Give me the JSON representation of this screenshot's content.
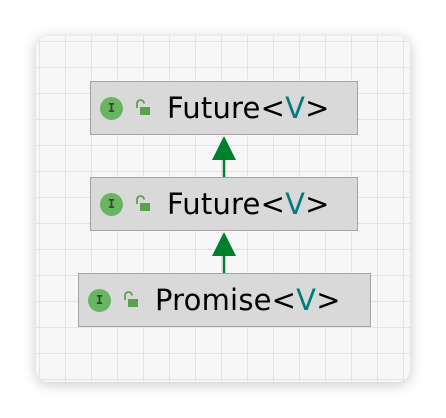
{
  "diagram": {
    "nodes": [
      {
        "id": "future-1",
        "kind_glyph": "I",
        "visibility": "public",
        "name": "Future",
        "open": "<",
        "type_param": "V",
        "close": ">"
      },
      {
        "id": "future-2",
        "kind_glyph": "I",
        "visibility": "public",
        "name": "Future",
        "open": "<",
        "type_param": "V",
        "close": ">"
      },
      {
        "id": "promise",
        "kind_glyph": "I",
        "visibility": "public",
        "name": "Promise",
        "open": "<",
        "type_param": "V",
        "close": ">"
      }
    ],
    "edges": [
      {
        "from": "future-2",
        "to": "future-1",
        "relation": "extends"
      },
      {
        "from": "promise",
        "to": "future-2",
        "relation": "extends"
      }
    ],
    "colors": {
      "canvas": "#f7f7f7",
      "grid": "#e4e4e4",
      "node_fill": "#d9d9d9",
      "node_border": "#a4a4a4",
      "interface_icon": "#69b461",
      "lock_icon": "#5aa04f",
      "type_param": "#007c7c",
      "arrow": "#00802b"
    },
    "icons": {
      "interface": "interface-i-icon",
      "visibility": "unlocked-padlock-icon"
    }
  }
}
